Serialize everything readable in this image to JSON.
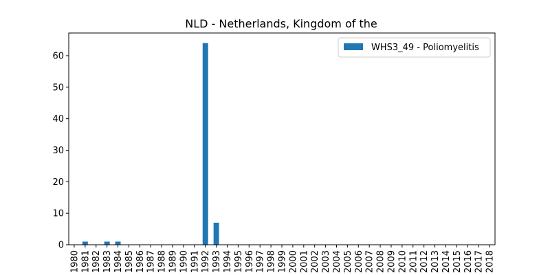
{
  "chart_data": {
    "type": "bar",
    "title": "NLD - Netherlands, Kingdom of the",
    "xlabel": "",
    "ylabel": "",
    "ylim": [
      0,
      67.2
    ],
    "yticks": [
      0,
      10,
      20,
      30,
      40,
      50,
      60
    ],
    "categories": [
      "1980",
      "1981",
      "1982",
      "1983",
      "1984",
      "1985",
      "1986",
      "1987",
      "1988",
      "1989",
      "1990",
      "1991",
      "1992",
      "1993",
      "1994",
      "1995",
      "1996",
      "1997",
      "1998",
      "1999",
      "2000",
      "2001",
      "2002",
      "2003",
      "2004",
      "2005",
      "2006",
      "2007",
      "2008",
      "2009",
      "2010",
      "2011",
      "2012",
      "2013",
      "2014",
      "2015",
      "2016",
      "2017",
      "2018"
    ],
    "series": [
      {
        "name": "WHS3_49 - Poliomyelitis",
        "color": "#1f77b4",
        "values": [
          0,
          1,
          0,
          1,
          1,
          0,
          0,
          0,
          0,
          0,
          0,
          0,
          64,
          7,
          0,
          0,
          0,
          0,
          0,
          0,
          0,
          0,
          0,
          0,
          0,
          0,
          0,
          0,
          0,
          0,
          0,
          0,
          0,
          0,
          0,
          0,
          0,
          0,
          0
        ]
      }
    ],
    "legend": "top-right",
    "grid": false
  }
}
